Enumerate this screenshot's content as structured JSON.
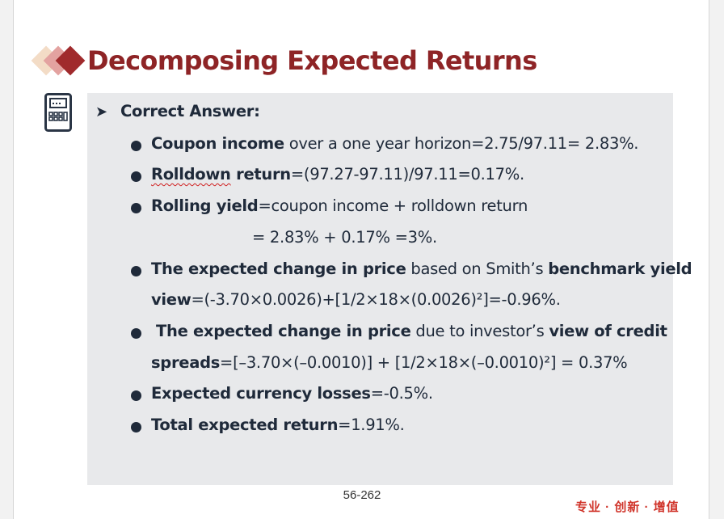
{
  "slide": {
    "title": "Decomposing Expected Returns",
    "heading": "Correct Answer:",
    "bullets": [
      {
        "bold": "Coupon income",
        "text": " over a one year horizon=2.75/97.11= 2.83%."
      },
      {
        "bold_a": "Rolldown",
        "bold_b": " return",
        "text": "=(97.27-97.11)/97.11=0.17%."
      },
      {
        "bold": "Rolling yield",
        "text": "=coupon income + rolldown return",
        "cont": "= 2.83% + 0.17% =3%."
      },
      {
        "bold": "The expected change in price",
        "text": " based on Smith’s ",
        "bold2": "benchmark yield",
        "bold3": "view",
        "text2": "=(-3.70×0.0026)+[1/2×18×(0.0026)²]=-0.96%."
      },
      {
        "bold": "The expected change in price",
        "text": " due to investor’s ",
        "bold2": "view of credit",
        "bold3": "spreads",
        "text2": "=[–3.70×(–0.0010)] + [1/2×18×(–0.0010)²] = 0.37%"
      },
      {
        "bold": "Expected currency losses",
        "text": "=-0.5%."
      },
      {
        "bold": "Total expected return",
        "text": "=1.91%."
      }
    ]
  },
  "footer": {
    "page_number": "56-262",
    "slogan": "专业 · 创新 · 增值"
  },
  "colors": {
    "title": "#8e2426",
    "panel": "#e8e9eb",
    "text": "#1f2a3a",
    "slogan": "#d0342a"
  }
}
